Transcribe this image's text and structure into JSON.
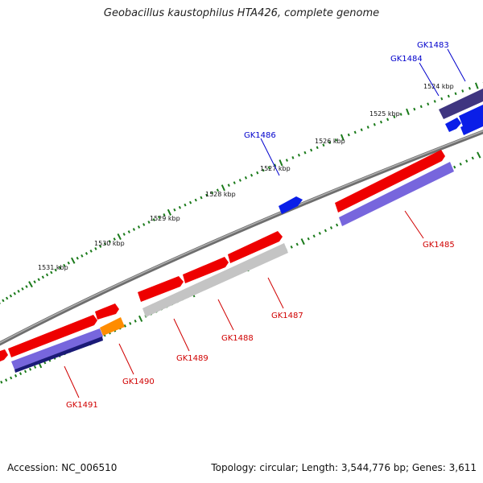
{
  "title": "Geobacillus kaustophilus HTA426, complete genome",
  "footer": {
    "accession": "Accession: NC_006510",
    "summary": "Topology: circular; Length: 3,544,776 bp; Genes: 3,611"
  },
  "colors": {
    "backbone": "#7a7a7a",
    "forward_gene": "#ee0000",
    "reverse_gene": "#7766dd",
    "reverse_gene_dark": "#1a1a77",
    "forward_gene_dark": "#443388",
    "blue_gene": "#0a1ee8",
    "orange_gene": "#ff8c00",
    "gray_gene": "#c4c4c4",
    "tick": "#1a7a1a",
    "label_red": "#d00000",
    "label_blue": "#0000cc"
  },
  "scale_labels": [
    "1524 kbp",
    "1525 kbp",
    "1526 kbp",
    "1527 kbp",
    "1528 kbp",
    "1529 kbp",
    "1530 kbp",
    "1531 kbp"
  ],
  "gene_labels": {
    "GK1483": "GK1483",
    "GK1484": "GK1484",
    "GK1485": "GK1485",
    "GK1486": "GK1486",
    "GK1487": "GK1487",
    "GK1488": "GK1488",
    "GK1489": "GK1489",
    "GK1490": "GK1490",
    "GK1491": "GK1491"
  }
}
